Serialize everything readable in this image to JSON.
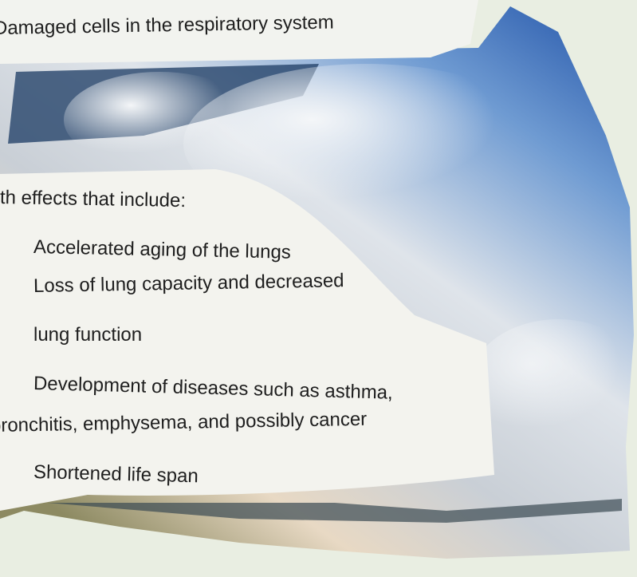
{
  "caption": "Damaged cells in the respiratory system",
  "intro": "th effects that include:",
  "lines": [
    "Accelerated aging of the lungs",
    "Loss of lung capacity and decreased",
    "lung function",
    "Development of diseases such as asthma,",
    "bronchitis, emphysema, and possibly cancer",
    "Shortened life span"
  ]
}
